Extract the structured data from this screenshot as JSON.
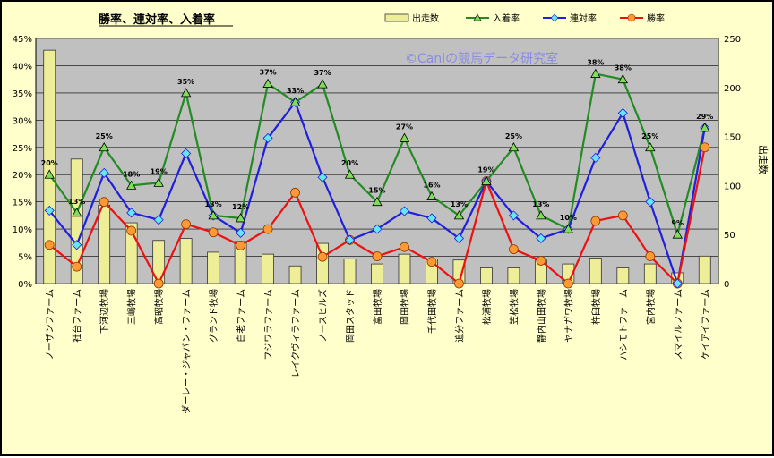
{
  "chart_data": {
    "type": "bar",
    "title": "勝率、連対率、入着率",
    "watermark": "©Caniの競馬データ研究室",
    "y2label": "出走数",
    "ylim": [
      0,
      45
    ],
    "y2lim": [
      0,
      250
    ],
    "yticks": [
      "0%",
      "5%",
      "10%",
      "15%",
      "20%",
      "25%",
      "30%",
      "35%",
      "40%",
      "45%"
    ],
    "y2ticks": [
      "0",
      "50",
      "100",
      "150",
      "200",
      "250"
    ],
    "categories": [
      "ノーザンファーム",
      "社台ファーム",
      "下河辺牧場",
      "三嶋牧場",
      "高昭牧場",
      "ダーレー・ジャパン・ファーム",
      "グランド牧場",
      "白老ファーム",
      "フジワラファーム",
      "レイクヴィラファーム",
      "ノースヒルズ",
      "岡田スタッド",
      "富田牧場",
      "岡田牧場",
      "千代田牧場",
      "追分ファーム",
      "松浦牧場",
      "笠松牧場",
      "静内山田牧場",
      "ヤナガワ牧場",
      "杵臼牧場",
      "ハシモトファーム",
      "宮内牧場",
      "スマイルファーム",
      "ケイアイファーム"
    ],
    "series": [
      {
        "name": "出走数",
        "color": "#eeee99",
        "axis": "right",
        "values": [
          238,
          127,
          80,
          62,
          44,
          46,
          32,
          43,
          30,
          18,
          41,
          25,
          20,
          30,
          25,
          24,
          16,
          16,
          24,
          20,
          26,
          16,
          20,
          11,
          28
        ]
      },
      {
        "name": "入着率",
        "color": "#228b22",
        "marker": "triangle",
        "values": [
          20,
          13,
          25,
          18,
          18.5,
          35,
          12.5,
          12,
          36.7,
          33.3,
          36.6,
          20,
          15,
          26.7,
          16,
          12.5,
          18.8,
          25,
          12.5,
          10,
          38.5,
          37.5,
          25,
          9,
          28.6
        ]
      },
      {
        "name": "連対率",
        "color": "#1f1fdd",
        "marker": "diamond",
        "values": [
          13.4,
          7.1,
          20.3,
          13,
          11.7,
          23.9,
          12.5,
          9.3,
          26.7,
          33.3,
          19.5,
          8,
          10,
          13.3,
          12,
          8.3,
          18.8,
          12.5,
          8.3,
          10,
          23.1,
          31.3,
          15,
          0,
          28.6
        ]
      },
      {
        "name": "勝率",
        "color": "#ee1111",
        "marker": "circle",
        "values": [
          7.1,
          3.1,
          15,
          9.7,
          0,
          10.9,
          9.4,
          7,
          10,
          16.7,
          4.9,
          8,
          5,
          6.7,
          4,
          0,
          18.8,
          6.3,
          4.2,
          0,
          11.5,
          12.5,
          5,
          0,
          25
        ]
      }
    ],
    "data_labels": [
      "20%",
      "13%",
      "25%",
      "18%",
      "19%",
      "35%",
      "13%",
      "12%",
      "37%",
      "33%",
      "37%",
      "20%",
      "15%",
      "27%",
      "16%",
      "13%",
      "19%",
      "25%",
      "13%",
      "10%",
      "38%",
      "38%",
      "25%",
      "9%",
      "29%"
    ]
  }
}
